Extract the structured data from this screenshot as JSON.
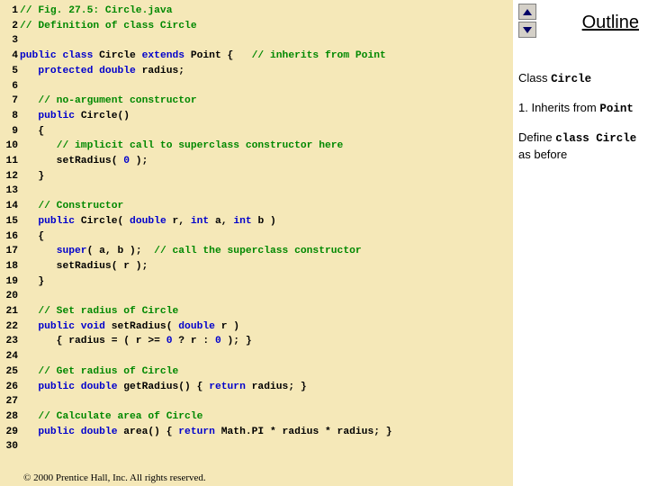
{
  "colors": {
    "code_bg": "#f5e8b8",
    "keyword": "#0000cc",
    "comment": "#008800",
    "text": "#000000",
    "side_bg": "#ffffff",
    "btn_bg": "#d4d0c8",
    "arrow": "#000066"
  },
  "code": [
    {
      "n": "1",
      "seg": [
        {
          "t": "cm",
          "v": "// Fig. 27.5: Circle.java"
        }
      ]
    },
    {
      "n": "2",
      "seg": [
        {
          "t": "cm",
          "v": "// Definition of class Circle"
        }
      ]
    },
    {
      "n": "3",
      "seg": []
    },
    {
      "n": "4",
      "seg": [
        {
          "t": "kw",
          "v": "public class "
        },
        {
          "t": "tx",
          "v": "Circle "
        },
        {
          "t": "kw",
          "v": "extends "
        },
        {
          "t": "tx",
          "v": "Point {   "
        },
        {
          "t": "cm",
          "v": "// inherits from Point"
        }
      ]
    },
    {
      "n": "5",
      "seg": [
        {
          "t": "tx",
          "v": "   "
        },
        {
          "t": "kw",
          "v": "protected double "
        },
        {
          "t": "tx",
          "v": "radius;"
        }
      ]
    },
    {
      "n": "6",
      "seg": []
    },
    {
      "n": "7",
      "seg": [
        {
          "t": "tx",
          "v": "   "
        },
        {
          "t": "cm",
          "v": "// no-argument constructor"
        }
      ]
    },
    {
      "n": "8",
      "seg": [
        {
          "t": "tx",
          "v": "   "
        },
        {
          "t": "kw",
          "v": "public "
        },
        {
          "t": "tx",
          "v": "Circle()"
        }
      ]
    },
    {
      "n": "9",
      "seg": [
        {
          "t": "tx",
          "v": "   {"
        }
      ]
    },
    {
      "n": "10",
      "seg": [
        {
          "t": "tx",
          "v": "      "
        },
        {
          "t": "cm",
          "v": "// implicit call to superclass constructor here"
        }
      ]
    },
    {
      "n": "11",
      "seg": [
        {
          "t": "tx",
          "v": "      setRadius( "
        },
        {
          "t": "kw",
          "v": "0"
        },
        {
          "t": "tx",
          "v": " ); "
        }
      ]
    },
    {
      "n": "12",
      "seg": [
        {
          "t": "tx",
          "v": "   }"
        }
      ]
    },
    {
      "n": "13",
      "seg": []
    },
    {
      "n": "14",
      "seg": [
        {
          "t": "tx",
          "v": "   "
        },
        {
          "t": "cm",
          "v": "// Constructor"
        }
      ]
    },
    {
      "n": "15",
      "seg": [
        {
          "t": "tx",
          "v": "   "
        },
        {
          "t": "kw",
          "v": "public "
        },
        {
          "t": "tx",
          "v": "Circle( "
        },
        {
          "t": "kw",
          "v": "double "
        },
        {
          "t": "tx",
          "v": "r, "
        },
        {
          "t": "kw",
          "v": "int "
        },
        {
          "t": "tx",
          "v": "a, "
        },
        {
          "t": "kw",
          "v": "int "
        },
        {
          "t": "tx",
          "v": "b )"
        }
      ]
    },
    {
      "n": "16",
      "seg": [
        {
          "t": "tx",
          "v": "   {"
        }
      ]
    },
    {
      "n": "17",
      "seg": [
        {
          "t": "tx",
          "v": "      "
        },
        {
          "t": "kw",
          "v": "super"
        },
        {
          "t": "tx",
          "v": "( a, b );  "
        },
        {
          "t": "cm",
          "v": "// call the superclass constructor"
        }
      ]
    },
    {
      "n": "18",
      "seg": [
        {
          "t": "tx",
          "v": "      setRadius( r );"
        }
      ]
    },
    {
      "n": "19",
      "seg": [
        {
          "t": "tx",
          "v": "   }"
        }
      ]
    },
    {
      "n": "20",
      "seg": []
    },
    {
      "n": "21",
      "seg": [
        {
          "t": "tx",
          "v": "   "
        },
        {
          "t": "cm",
          "v": "// Set radius of Circle"
        }
      ]
    },
    {
      "n": "22",
      "seg": [
        {
          "t": "tx",
          "v": "   "
        },
        {
          "t": "kw",
          "v": "public void "
        },
        {
          "t": "tx",
          "v": "setRadius( "
        },
        {
          "t": "kw",
          "v": "double "
        },
        {
          "t": "tx",
          "v": "r )"
        }
      ]
    },
    {
      "n": "23",
      "seg": [
        {
          "t": "tx",
          "v": "      { radius = ( r >= "
        },
        {
          "t": "kw",
          "v": "0"
        },
        {
          "t": "tx",
          "v": " ? r : "
        },
        {
          "t": "kw",
          "v": "0"
        },
        {
          "t": "tx",
          "v": " ); }"
        }
      ]
    },
    {
      "n": "24",
      "seg": []
    },
    {
      "n": "25",
      "seg": [
        {
          "t": "tx",
          "v": "   "
        },
        {
          "t": "cm",
          "v": "// Get radius of Circle"
        }
      ]
    },
    {
      "n": "26",
      "seg": [
        {
          "t": "tx",
          "v": "   "
        },
        {
          "t": "kw",
          "v": "public double "
        },
        {
          "t": "tx",
          "v": "getRadius() { "
        },
        {
          "t": "kw",
          "v": "return "
        },
        {
          "t": "tx",
          "v": "radius; }"
        }
      ]
    },
    {
      "n": "27",
      "seg": []
    },
    {
      "n": "28",
      "seg": [
        {
          "t": "tx",
          "v": "   "
        },
        {
          "t": "cm",
          "v": "// Calculate area of Circle"
        }
      ]
    },
    {
      "n": "29",
      "seg": [
        {
          "t": "tx",
          "v": "   "
        },
        {
          "t": "kw",
          "v": "public double "
        },
        {
          "t": "tx",
          "v": "area() { "
        },
        {
          "t": "kw",
          "v": "return "
        },
        {
          "t": "tx",
          "v": "Math.PI * radius * radius; }"
        }
      ]
    },
    {
      "n": "30",
      "seg": []
    }
  ],
  "footer": "© 2000 Prentice Hall, Inc. All rights reserved.",
  "outline": {
    "title": "Outline",
    "note1_prefix": "Class ",
    "note1_mono": "Circle",
    "note2_prefix": "1. Inherits from ",
    "note2_mono": "Point",
    "note3_prefix": "Define ",
    "note3_mono": "class Circle",
    "note3_suffix": " as before"
  }
}
